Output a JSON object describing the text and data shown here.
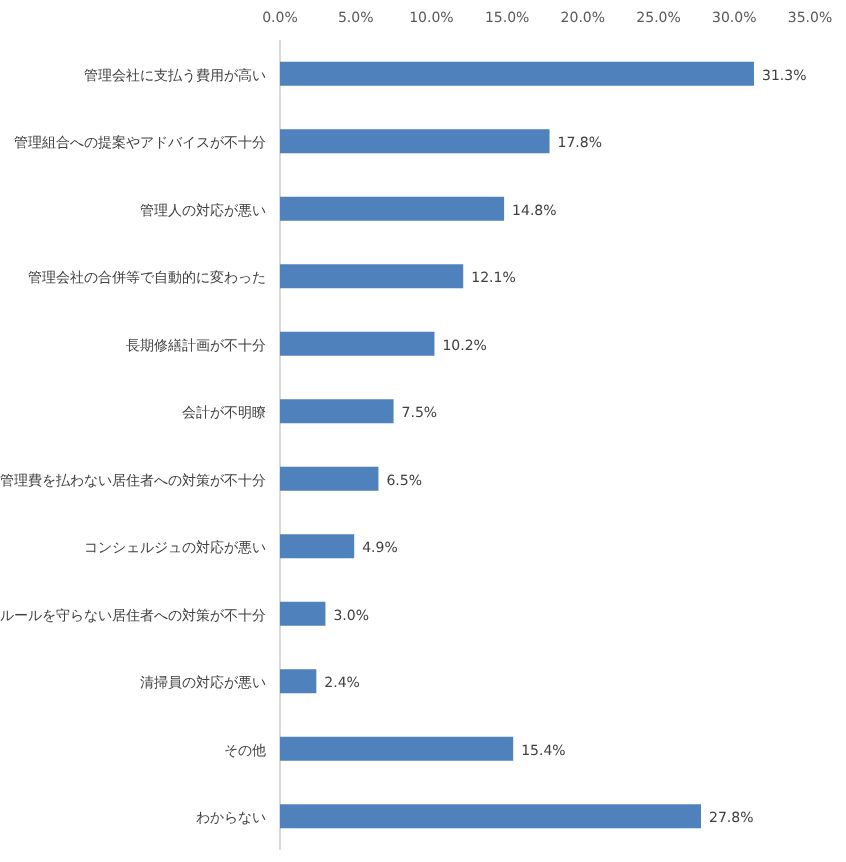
{
  "chart_data": {
    "type": "bar",
    "orientation": "horizontal",
    "color": "#4f81bd",
    "categories": [
      "管理会社に支払う費用が高い",
      "管理組合への提案やアドバイスが不十分",
      "管理人の対応が悪い",
      "管理会社の合併等で自動的に変わった",
      "長期修繕計画が不十分",
      "会計が不明瞭",
      "管理費を払わない居住者への対策が不十分",
      "コンシェルジュの対応が悪い",
      "ルールを守らない居住者への対策が不十分",
      "清掃員の対応が悪い",
      "その他",
      "わからない"
    ],
    "values": [
      31.3,
      17.8,
      14.8,
      12.1,
      10.2,
      7.5,
      6.5,
      4.9,
      3.0,
      2.4,
      15.4,
      27.8
    ],
    "value_labels": [
      "31.3%",
      "17.8%",
      "14.8%",
      "12.1%",
      "10.2%",
      "7.5%",
      "6.5%",
      "4.9%",
      "3.0%",
      "2.4%",
      "15.4%",
      "27.8%"
    ],
    "xlim": [
      0,
      35
    ],
    "xticks": [
      {
        "value": 0,
        "label": "0.0%"
      },
      {
        "value": 5,
        "label": "5.0%"
      },
      {
        "value": 10,
        "label": "10.0%"
      },
      {
        "value": 15,
        "label": "15.0%"
      },
      {
        "value": 20,
        "label": "20.0%"
      },
      {
        "value": 25,
        "label": "25.0%"
      },
      {
        "value": 30,
        "label": "30.0%"
      },
      {
        "value": 35,
        "label": "35.0%"
      }
    ]
  }
}
